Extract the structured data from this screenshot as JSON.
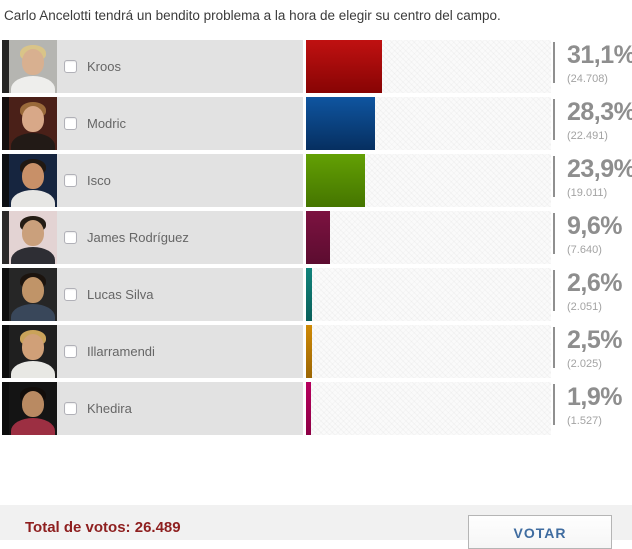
{
  "title": "Carlo Ancelotti tendrá un bendito problema a la hora de elegir su centro del campo.",
  "poll": {
    "options": [
      {
        "name": "Kroos",
        "percent": "31,1%",
        "value": 31.1,
        "votes": "(24.708)",
        "bar_top": "#c01111",
        "bar_bottom": "#870404",
        "photo": {
          "bg": "#b5b5b1",
          "shirt": "#eeeeec",
          "hair": "#d9c488",
          "skin": "#d8b090"
        }
      },
      {
        "name": "Modric",
        "percent": "28,3%",
        "value": 28.3,
        "votes": "(22.491)",
        "bar_top": "#0f55a0",
        "bar_bottom": "#062f60",
        "photo": {
          "bg": "#4a2018",
          "shirt": "#221a16",
          "hair": "#9a6a3a",
          "skin": "#d8a888"
        }
      },
      {
        "name": "Isco",
        "percent": "23,9%",
        "value": 23.9,
        "votes": "(19.011)",
        "bar_top": "#63a004",
        "bar_bottom": "#457500",
        "photo": {
          "bg": "#16253f",
          "shirt": "#e6e6e4",
          "hair": "#201812",
          "skin": "#c89068"
        }
      },
      {
        "name": "James Rodríguez",
        "percent": "9,6%",
        "value": 9.6,
        "votes": "(7.640)",
        "bar_top": "#7c1240",
        "bar_bottom": "#5c0c30",
        "photo": {
          "bg": "#e3d3d3",
          "shirt": "#2e2e34",
          "hair": "#241c14",
          "skin": "#caa07c"
        }
      },
      {
        "name": "Lucas Silva",
        "percent": "2,6%",
        "value": 2.6,
        "votes": "(2.051)",
        "bar_top": "#11837b",
        "bar_bottom": "#0a5f5a",
        "photo": {
          "bg": "#262626",
          "shirt": "#39475a",
          "hair": "#1c140e",
          "skin": "#c09468"
        }
      },
      {
        "name": "Illarramendi",
        "percent": "2,5%",
        "value": 2.5,
        "votes": "(2.025)",
        "bar_top": "#cf8a06",
        "bar_bottom": "#9c6604",
        "photo": {
          "bg": "#1f1f1f",
          "shirt": "#e8e8e4",
          "hair": "#caa35a",
          "skin": "#d0a078"
        }
      },
      {
        "name": "Khedira",
        "percent": "1,9%",
        "value": 1.9,
        "votes": "(1.527)",
        "bar_top": "#b8005e",
        "bar_bottom": "#8c0045",
        "photo": {
          "bg": "#141414",
          "shirt": "#9c2f42",
          "hair": "#120d0a",
          "skin": "#b98a62"
        }
      }
    ]
  },
  "footer": {
    "total_label": "Total de votos:",
    "total_value": "26.489",
    "vote_button_label": "VOTAR"
  },
  "colors": {
    "total_text": "#8e1f1f",
    "button_text": "#3f6ca0",
    "panel_bg": "#e2e2e2"
  }
}
